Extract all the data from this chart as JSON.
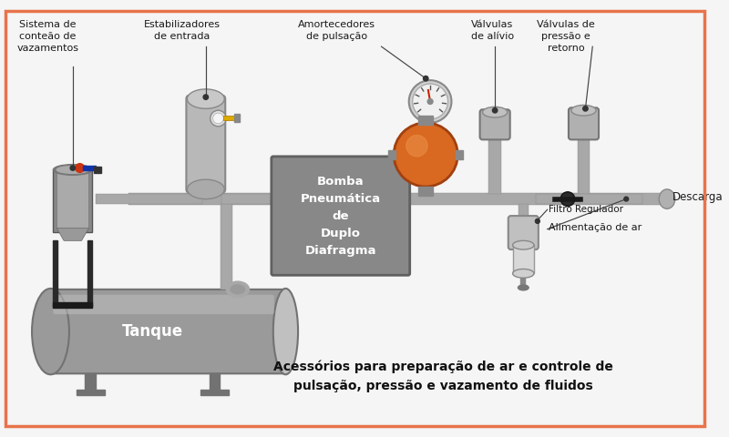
{
  "bg_color": "#f5f5f5",
  "border_color": "#e8734a",
  "subtitle": "Acessórios para preparação de ar e controle de\npulsação, pressão e vazamento de fluidos",
  "labels": {
    "sistema": "Sistema de\nconteão de\nvazamentos",
    "estabilizadores": "Estabilizadores\nde entrada",
    "amortecedores": "Amortecedores\nde pulsação",
    "valvulas_alivio": "Válvulas\nde alívio",
    "valvulas_pressao": "Válvulas de\npressão e\nretorno",
    "descarga": "Descarga",
    "filtro": "Filtro Regulador",
    "alimentacao": "Alimentação de ar",
    "tanque": "Tanque",
    "bomba": "Bomba\nPneumática\nde\nDuplo\nDiafragma"
  },
  "colors": {
    "pipe": "#a8a8a8",
    "pipe_dark": "#888888",
    "pipe_light": "#c8c8c8",
    "tank": "#9a9a9a",
    "tank_dark": "#727272",
    "tank_light": "#c0c0c0",
    "pump_box": "#888888",
    "pump_box_dark": "#606060",
    "orange": "#d96820",
    "orange_light": "#e88840",
    "stabilizer": "#b8b8b8",
    "stabilizer_dark": "#888888",
    "text_dark": "#1a1a1a",
    "arrow": "#444444"
  }
}
